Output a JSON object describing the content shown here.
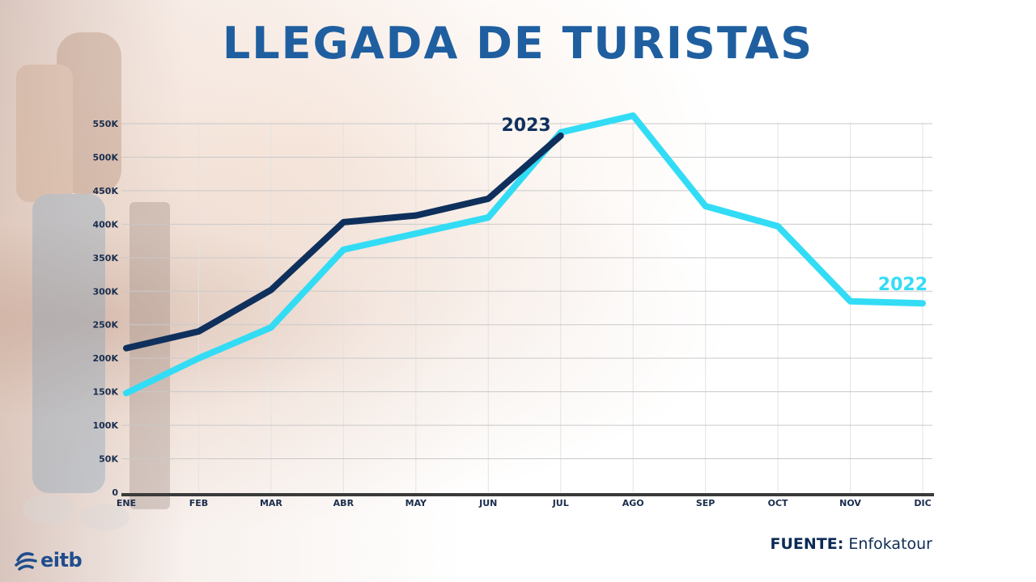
{
  "title": "LLEGADA DE TURISTAS",
  "source": {
    "label": "FUENTE:",
    "value": "Enfokatour"
  },
  "logo": {
    "text": "eitb"
  },
  "colors": {
    "series_2023": "#0f305c",
    "series_2022": "#33dcf5",
    "title": "#1f5fa0",
    "axis_text": "#1a2d4d"
  },
  "chart_data": {
    "type": "line",
    "title": "LLEGADA DE TURISTAS",
    "xlabel": "",
    "ylabel": "",
    "categories": [
      "ENE",
      "FEB",
      "MAR",
      "ABR",
      "MAY",
      "JUN",
      "JUL",
      "AGO",
      "SEP",
      "OCT",
      "NOV",
      "DIC"
    ],
    "y_ticks": [
      "0",
      "50K",
      "100K",
      "150K",
      "200K",
      "250K",
      "300K",
      "350K",
      "400K",
      "450K",
      "500K",
      "550K"
    ],
    "ylim": [
      0,
      550000
    ],
    "grid": true,
    "series": [
      {
        "name": "2023",
        "values": [
          215000,
          240000,
          302000,
          403000,
          413000,
          438000,
          532000,
          null,
          null,
          null,
          null,
          null
        ]
      },
      {
        "name": "2022",
        "values": [
          148000,
          200000,
          246000,
          362000,
          386000,
          410000,
          537000,
          562000,
          427000,
          397000,
          285000,
          282000
        ]
      }
    ]
  }
}
